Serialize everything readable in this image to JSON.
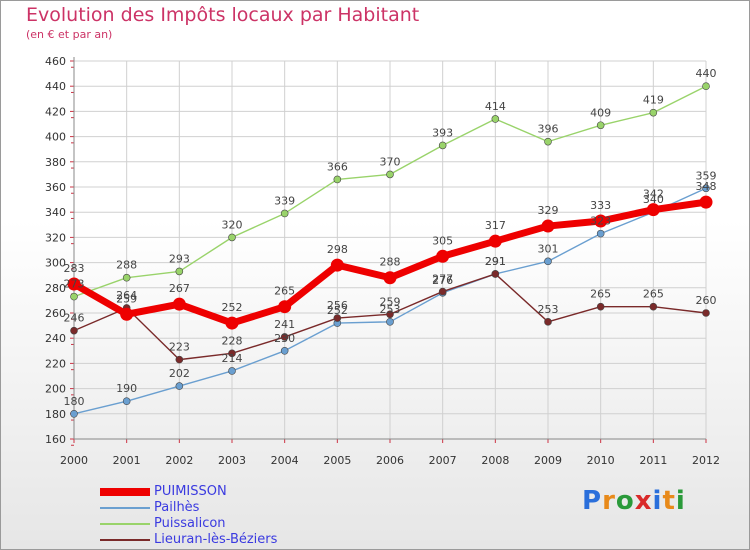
{
  "title": "Evolution des Impôts locaux par Habitant",
  "subtitle": "(en € et par an)",
  "logo": "Proxiti",
  "chart_data": {
    "type": "line",
    "title": "Evolution des Impôts locaux par Habitant",
    "subtitle": "(en € et par an)",
    "xlabel": "",
    "ylabel": "",
    "x": [
      "2000",
      "2001",
      "2002",
      "2003",
      "2004",
      "2005",
      "2006",
      "2007",
      "2008",
      "2009",
      "2010",
      "2011",
      "2012"
    ],
    "ylim": [
      160,
      460
    ],
    "yticks": [
      160,
      180,
      200,
      220,
      240,
      260,
      280,
      300,
      320,
      340,
      360,
      380,
      400,
      420,
      440,
      460
    ],
    "grid": true,
    "legend_position": "bottom-left",
    "series": [
      {
        "name": "PUIMISSON",
        "color": "#ee0000",
        "values": [
          283,
          259,
          267,
          252,
          265,
          298,
          288,
          305,
          317,
          329,
          333,
          342,
          348
        ]
      },
      {
        "name": "Pailhès",
        "color": "#6a9fd0",
        "values": [
          180,
          190,
          202,
          214,
          230,
          252,
          253,
          276,
          291,
          301,
          323,
          340,
          359
        ]
      },
      {
        "name": "Puissalicon",
        "color": "#99d36a",
        "values": [
          273,
          288,
          293,
          320,
          339,
          366,
          370,
          393,
          414,
          396,
          409,
          419,
          440
        ]
      },
      {
        "name": "Lieuran-lès-Béziers",
        "color": "#7a2a2a",
        "values": [
          246,
          264,
          223,
          228,
          241,
          256,
          259,
          277,
          291,
          253,
          265,
          265,
          260
        ]
      }
    ]
  }
}
